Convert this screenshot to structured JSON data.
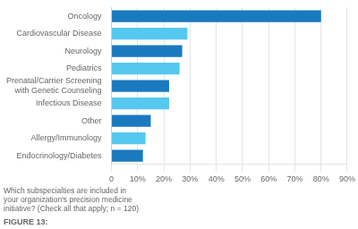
{
  "chart_data": {
    "type": "bar",
    "orientation": "horizontal",
    "title": "FIGURE 13:",
    "subtitle": "Which subspecialties are included in\nyour organization's precision medicine\ninitiative? (Check all that apply; n = 120)",
    "categories": [
      "Endocrinology/Diabetes",
      "Allergy/Immunology",
      "Other",
      "Infectious Disease",
      "Prenatal/Carrier Screening\nwith Genetic Counseling",
      "Pediatrics",
      "Neurology",
      "Cardiovascular Disease",
      "Oncology"
    ],
    "values": [
      12,
      13,
      15,
      22,
      22,
      26,
      27,
      29,
      80
    ],
    "colors": [
      "#1a7abf",
      "#55c8f0",
      "#1a7abf",
      "#55c8f0",
      "#1a7abf",
      "#55c8f0",
      "#1a7abf",
      "#55c8f0",
      "#1a7abf"
    ],
    "xlim": [
      0,
      90
    ],
    "xticks": [
      0,
      {
        "value": 10,
        "label": "10%"
      },
      {
        "value": 20,
        "label": "20%"
      },
      {
        "value": 30,
        "label": "30%"
      },
      {
        "value": 40,
        "label": "40%"
      },
      {
        "value": 50,
        "label": "50%"
      },
      {
        "value": 60,
        "label": "60%"
      },
      {
        "value": 70,
        "label": "70%"
      },
      {
        "value": 80,
        "label": "80%"
      },
      {
        "value": 90,
        "label": "90%"
      }
    ],
    "grid": true
  }
}
